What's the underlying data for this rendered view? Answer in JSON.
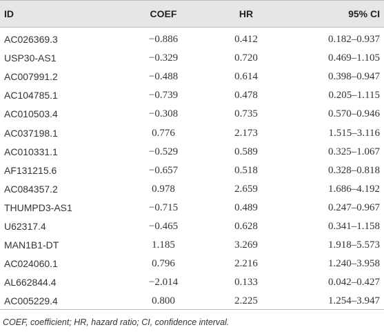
{
  "table": {
    "headers": {
      "id": "ID",
      "coef": "COEF",
      "hr": "HR",
      "ci": "95% CI"
    },
    "rows": [
      {
        "id": "AC026369.3",
        "coef": "−0.886",
        "hr": "0.412",
        "ci": "0.182–0.937"
      },
      {
        "id": "USP30-AS1",
        "coef": "−0.329",
        "hr": "0.720",
        "ci": "0.469–1.105"
      },
      {
        "id": "AC007991.2",
        "coef": "−0.488",
        "hr": "0.614",
        "ci": "0.398–0.947"
      },
      {
        "id": "AC104785.1",
        "coef": "−0.739",
        "hr": "0.478",
        "ci": "0.205–1.115"
      },
      {
        "id": "AC010503.4",
        "coef": "−0.308",
        "hr": "0.735",
        "ci": "0.570–0.946"
      },
      {
        "id": "AC037198.1",
        "coef": "0.776",
        "hr": "2.173",
        "ci": "1.515–3.116"
      },
      {
        "id": "AC010331.1",
        "coef": "−0.529",
        "hr": "0.589",
        "ci": "0.325–1.067"
      },
      {
        "id": "AF131215.6",
        "coef": "−0.657",
        "hr": "0.518",
        "ci": "0.328–0.818"
      },
      {
        "id": "AC084357.2",
        "coef": "0.978",
        "hr": "2.659",
        "ci": "1.686–4.192"
      },
      {
        "id": "THUMPD3-AS1",
        "coef": "−0.715",
        "hr": "0.489",
        "ci": "0.247–0.967"
      },
      {
        "id": "U62317.4",
        "coef": "−0.465",
        "hr": "0.628",
        "ci": "0.341–1.158"
      },
      {
        "id": "MAN1B1-DT",
        "coef": "1.185",
        "hr": "3.269",
        "ci": "1.918–5.573"
      },
      {
        "id": "AC024060.1",
        "coef": "0.796",
        "hr": "2.216",
        "ci": "1.240–3.958"
      },
      {
        "id": "AL662844.4",
        "coef": "−2.014",
        "hr": "0.133",
        "ci": "0.042–0.427"
      },
      {
        "id": "AC005229.4",
        "coef": "0.800",
        "hr": "2.225",
        "ci": "1.254–3.947"
      }
    ]
  },
  "footnote": "COEF, coefficient; HR, hazard ratio; CI, confidence interval."
}
